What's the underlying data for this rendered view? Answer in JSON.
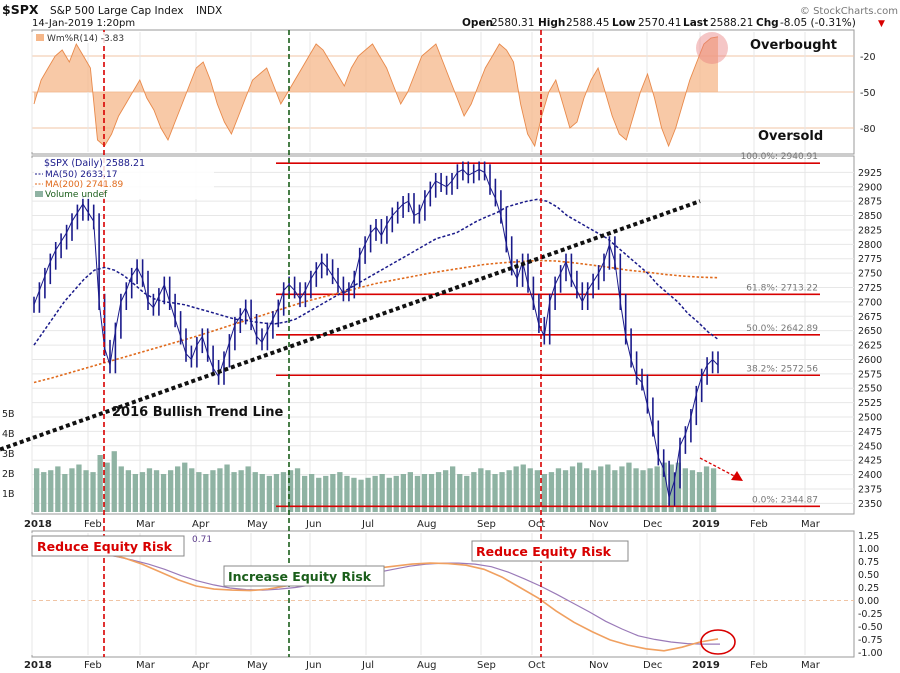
{
  "header": {
    "symbol": "$SPX",
    "name": "S&P 500 Large Cap Index",
    "exchange": "INDX",
    "date": "14-Jan-2019 1:20pm",
    "open_label": "Open",
    "open": "2580.31",
    "high_label": "High",
    "high": "2588.45",
    "low_label": "Low",
    "low": "2570.41",
    "last_label": "Last",
    "last": "2588.21",
    "chg_label": "Chg",
    "chg": "-8.05 (-0.31%)",
    "chg_glyph": "▼",
    "watermark": "© StockCharts.com"
  },
  "colors": {
    "price": "#1a1a8a",
    "ma50": "#1a1a8a",
    "ma200": "#e06a1c",
    "volume": "#8fb3a3",
    "willr_fill": "#f5b78a",
    "willr_line": "#e8894a",
    "red_line": "#d80000",
    "green_dash": "#1a5e1a",
    "trendline": "#111111",
    "grid": "#e7e7e7",
    "ref_line": "#f0c4a4"
  },
  "chart_data": [
    {
      "type": "area",
      "panel": "Williams %R",
      "legend": "Wm%R(14) -3.83",
      "y_ticks": [
        "-20",
        "-50",
        "-80"
      ],
      "ylim": [
        -100,
        0
      ],
      "annotations": [
        "Overbought",
        "Oversold"
      ],
      "values": [
        -60,
        -40,
        -30,
        -20,
        -15,
        -25,
        -10,
        -20,
        -30,
        -90,
        -95,
        -85,
        -70,
        -60,
        -50,
        -40,
        -55,
        -65,
        -80,
        -90,
        -75,
        -60,
        -45,
        -30,
        -25,
        -40,
        -60,
        -75,
        -85,
        -70,
        -55,
        -40,
        -35,
        -30,
        -45,
        -60,
        -50,
        -40,
        -30,
        -20,
        -10,
        -15,
        -25,
        -35,
        -45,
        -30,
        -20,
        -15,
        -10,
        -20,
        -30,
        -45,
        -60,
        -50,
        -35,
        -20,
        -15,
        -10,
        -25,
        -40,
        -55,
        -70,
        -60,
        -45,
        -30,
        -20,
        -10,
        -15,
        -25,
        -60,
        -85,
        -95,
        -70,
        -50,
        -40,
        -60,
        -80,
        -75,
        -55,
        -40,
        -30,
        -50,
        -70,
        -85,
        -90,
        -70,
        -50,
        -35,
        -55,
        -80,
        -95,
        -80,
        -60,
        -40,
        -25,
        -10,
        -5,
        -4
      ],
      "x_ticks": [
        "2018",
        "Feb",
        "Mar",
        "Apr",
        "May",
        "Jun",
        "Jul",
        "Aug",
        "Sep",
        "Oct",
        "Nov",
        "Dec",
        "2019",
        "Feb",
        "Mar"
      ]
    },
    {
      "type": "line",
      "panel": "Price",
      "legend_price": "$SPX (Daily) 2588.21",
      "legend_ma50": "MA(50) 2633.17",
      "legend_ma200": "MA(200) 2741.89",
      "legend_volume": "Volume undef",
      "y_ticks": [
        2350,
        2375,
        2400,
        2425,
        2450,
        2475,
        2500,
        2525,
        2550,
        2575,
        2600,
        2625,
        2650,
        2675,
        2700,
        2725,
        2750,
        2775,
        2800,
        2825,
        2850,
        2875,
        2900,
        2925
      ],
      "ylim": [
        2335,
        2950
      ],
      "volume_ticks": [
        "5B",
        "4B",
        "3B",
        "2B",
        "1B"
      ],
      "fib_levels": [
        {
          "label": "100.0%: 2940.91",
          "value": 2940.91
        },
        {
          "label": "61.8%: 2713.22",
          "value": 2713.22
        },
        {
          "label": "50.0%: 2642.89",
          "value": 2642.89
        },
        {
          "label": "38.2%: 2572.56",
          "value": 2572.56
        },
        {
          "label": "0.0%: 2344.87",
          "value": 2344.87
        }
      ],
      "annotation": "2016 Bullish Trend Line",
      "x_ticks": [
        "2018",
        "Feb",
        "Mar",
        "Apr",
        "May",
        "Jun",
        "Jul",
        "Aug",
        "Sep",
        "Oct",
        "Nov",
        "Dec",
        "2019",
        "Feb",
        "Mar"
      ],
      "price": [
        2695,
        2720,
        2745,
        2770,
        2790,
        2805,
        2820,
        2840,
        2855,
        2870,
        2855,
        2840,
        2700,
        2620,
        2590,
        2650,
        2700,
        2720,
        2745,
        2760,
        2740,
        2700,
        2690,
        2710,
        2730,
        2700,
        2670,
        2640,
        2610,
        2600,
        2625,
        2640,
        2610,
        2585,
        2570,
        2600,
        2630,
        2660,
        2675,
        2690,
        2665,
        2640,
        2630,
        2650,
        2670,
        2690,
        2720,
        2730,
        2720,
        2705,
        2720,
        2740,
        2755,
        2770,
        2760,
        2745,
        2730,
        2715,
        2720,
        2740,
        2780,
        2800,
        2820,
        2830,
        2815,
        2835,
        2850,
        2860,
        2870,
        2875,
        2850,
        2855,
        2880,
        2895,
        2910,
        2905,
        2900,
        2910,
        2925,
        2930,
        2920,
        2925,
        2930,
        2925,
        2900,
        2880,
        2850,
        2800,
        2760,
        2740,
        2770,
        2730,
        2700,
        2660,
        2640,
        2700,
        2730,
        2750,
        2770,
        2740,
        2720,
        2700,
        2720,
        2735,
        2750,
        2770,
        2800,
        2770,
        2700,
        2640,
        2600,
        2570,
        2560,
        2520,
        2480,
        2430,
        2410,
        2360,
        2390,
        2450,
        2470,
        2500,
        2540,
        2570,
        2590,
        2600,
        2590
      ],
      "ma50": [
        2625,
        2650,
        2675,
        2700,
        2720,
        2740,
        2755,
        2760,
        2755,
        2745,
        2730,
        2715,
        2705,
        2700,
        2698,
        2695,
        2690,
        2685,
        2680,
        2675,
        2670,
        2668,
        2665,
        2663,
        2662,
        2665,
        2670,
        2680,
        2690,
        2700,
        2710,
        2720,
        2730,
        2740,
        2750,
        2760,
        2770,
        2780,
        2790,
        2800,
        2810,
        2815,
        2820,
        2830,
        2840,
        2848,
        2855,
        2865,
        2870,
        2875,
        2878,
        2875,
        2865,
        2850,
        2840,
        2830,
        2820,
        2810,
        2795,
        2780,
        2765,
        2750,
        2730,
        2715,
        2700,
        2680,
        2665,
        2648,
        2635
      ],
      "ma200": [
        2560,
        2568,
        2577,
        2586,
        2595,
        2604,
        2613,
        2622,
        2631,
        2640,
        2650,
        2660,
        2670,
        2680,
        2690,
        2700,
        2708,
        2716,
        2724,
        2732,
        2738,
        2744,
        2750,
        2755,
        2760,
        2765,
        2768,
        2770,
        2772,
        2771,
        2768,
        2764,
        2760,
        2755,
        2752,
        2748,
        2745,
        2743,
        2742
      ],
      "volume": [
        2.3,
        2.1,
        2.2,
        2.4,
        2.0,
        2.3,
        2.5,
        2.2,
        2.1,
        3.0,
        2.6,
        3.2,
        2.4,
        2.2,
        2.0,
        2.1,
        2.3,
        2.2,
        2.0,
        2.2,
        2.4,
        2.6,
        2.3,
        2.1,
        2.0,
        2.2,
        2.3,
        2.5,
        2.1,
        2.2,
        2.4,
        2.1,
        2.0,
        1.9,
        2.0,
        2.1,
        2.2,
        2.3,
        1.9,
        2.0,
        1.8,
        1.9,
        2.0,
        2.1,
        1.9,
        1.8,
        1.7,
        1.8,
        1.9,
        2.0,
        1.8,
        1.9,
        2.0,
        2.1,
        1.9,
        2.0,
        2.0,
        2.1,
        2.2,
        2.4,
        2.0,
        1.9,
        2.1,
        2.3,
        2.2,
        2.0,
        2.1,
        2.2,
        2.4,
        2.5,
        2.3,
        2.2,
        2.0,
        2.1,
        2.3,
        2.2,
        2.4,
        2.6,
        2.3,
        2.2,
        2.4,
        2.5,
        2.2,
        2.4,
        2.6,
        2.3,
        2.2,
        2.3,
        2.4,
        2.6,
        2.5,
        2.6,
        2.3,
        2.2,
        2.1,
        2.4,
        2.3
      ],
      "trend_line": {
        "start": 2520,
        "end": 2875
      }
    },
    {
      "type": "line",
      "panel": "Correlation",
      "legend": "0.71",
      "y_ticks": [
        "1.25",
        "1.00",
        "0.75",
        "0.50",
        "0.25",
        "0.00",
        "-0.25",
        "-0.50",
        "-0.75",
        "-1.00"
      ],
      "ylim": [
        -1.05,
        1.3
      ],
      "annotations": [
        "Reduce Equity Risk",
        "Increase Equity Risk",
        "Reduce Equity Risk"
      ],
      "x_ticks": [
        "2018",
        "Feb",
        "Mar",
        "Apr",
        "May",
        "Jun",
        "Jul",
        "Aug",
        "Sep",
        "Oct",
        "Nov",
        "Dec",
        "2019",
        "Feb",
        "Mar"
      ],
      "series": [
        {
          "values": [
            0.9,
            0.92,
            0.93,
            0.92,
            0.9,
            0.85,
            0.78,
            0.7,
            0.6,
            0.48,
            0.38,
            0.3,
            0.24,
            0.21,
            0.2,
            0.22,
            0.25,
            0.3,
            0.36,
            0.42,
            0.48,
            0.54,
            0.6,
            0.66,
            0.7,
            0.72,
            0.72,
            0.7,
            0.65,
            0.55,
            0.42,
            0.28,
            0.12,
            -0.05,
            -0.22,
            -0.4,
            -0.55,
            -0.68,
            -0.75,
            -0.8,
            -0.83,
            -0.84,
            -0.84
          ]
        },
        {
          "values": [
            0.92,
            0.93,
            0.94,
            0.93,
            0.9,
            0.82,
            0.7,
            0.55,
            0.4,
            0.28,
            0.22,
            0.2,
            0.19,
            0.22,
            0.28,
            0.35,
            0.42,
            0.5,
            0.56,
            0.62,
            0.66,
            0.7,
            0.72,
            0.71,
            0.68,
            0.6,
            0.45,
            0.25,
            0.05,
            -0.2,
            -0.42,
            -0.6,
            -0.76,
            -0.86,
            -0.93,
            -0.97,
            -0.9,
            -0.8,
            -0.74
          ]
        }
      ]
    }
  ]
}
